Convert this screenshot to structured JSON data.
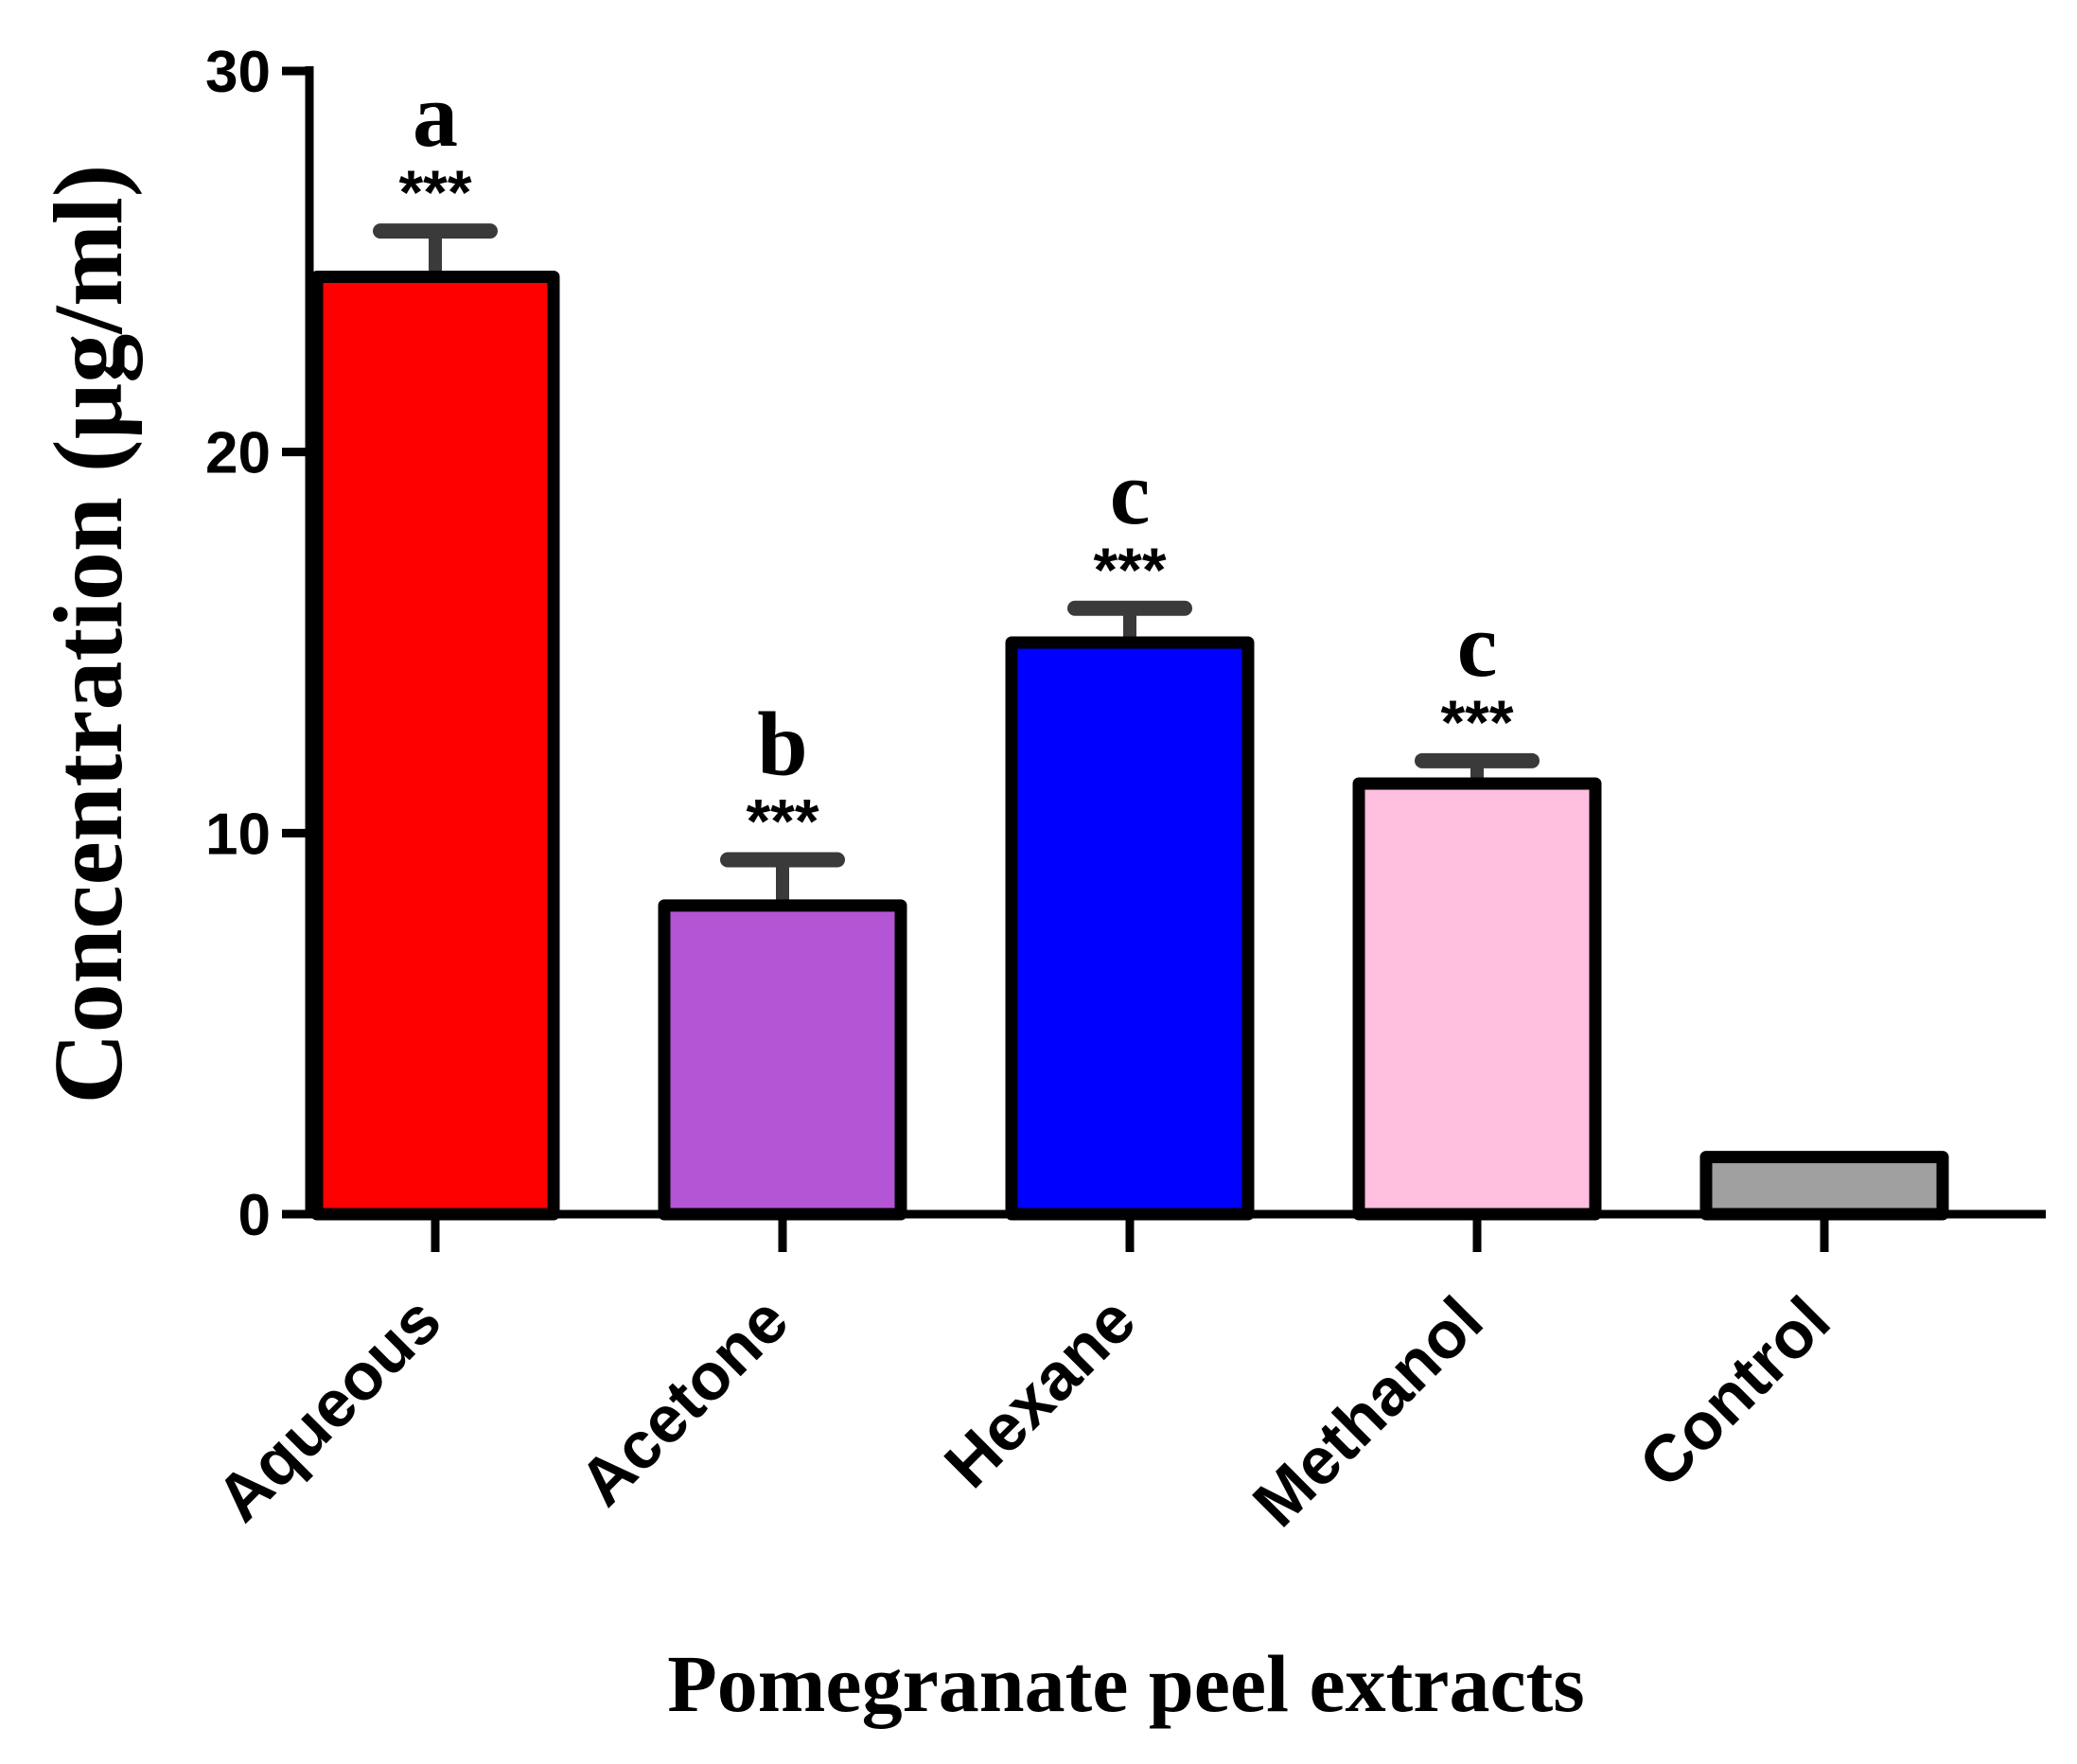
{
  "chart_data": {
    "type": "bar",
    "title": "",
    "xlabel": "Pomegranate peel extracts",
    "ylabel": "Concentration (µg/ml)",
    "ylim": [
      0,
      30
    ],
    "yticks": [
      0,
      10,
      20,
      30
    ],
    "grid": false,
    "categories": [
      "Aqueous",
      "Acetone",
      "Hexane",
      "Methanol",
      "Control"
    ],
    "values": [
      24.6,
      8.1,
      15.0,
      11.3,
      1.5
    ],
    "errors": [
      1.2,
      1.2,
      0.9,
      0.6,
      0
    ],
    "colors": [
      "#ff0000",
      "#b455d6",
      "#0000ff",
      "#ffbfdf",
      "#a0a0a0"
    ],
    "significance": [
      "***",
      "***",
      "***",
      "***",
      ""
    ],
    "group_letters": [
      "a",
      "b",
      "c",
      "c",
      ""
    ]
  }
}
